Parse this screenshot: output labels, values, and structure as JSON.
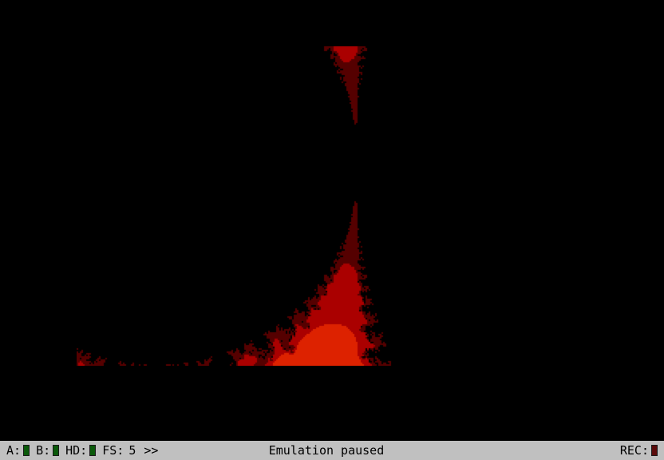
{
  "emulator": {
    "display_icon": "fractal-render",
    "palette": [
      "#eeeeee",
      "#eecc44",
      "#ccaa00",
      "#ff5500",
      "#dd2200",
      "#aa0000",
      "#550000",
      "#000000"
    ]
  },
  "statusbar": {
    "drive_a": {
      "label": "A:",
      "led_color": "#0a5a0a"
    },
    "drive_b": {
      "label": "B:",
      "led_color": "#0a5a0a"
    },
    "drive_hd": {
      "label": "HD:",
      "led_color": "#0a5a0a"
    },
    "fs": {
      "label": "FS:",
      "value": "5",
      "arrows": ">>"
    },
    "message": "Emulation paused",
    "rec": {
      "label": "REC:",
      "led_color": "#5a0a0a"
    }
  }
}
